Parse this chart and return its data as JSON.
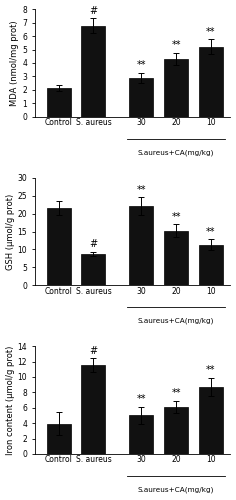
{
  "panels": [
    {
      "ylabel": "MDA (nmol/mg prot)",
      "ylim": [
        0,
        8
      ],
      "yticks": [
        0,
        1,
        2,
        3,
        4,
        5,
        6,
        7,
        8
      ],
      "values": [
        2.15,
        6.75,
        2.9,
        4.3,
        5.2
      ],
      "errors": [
        0.2,
        0.55,
        0.35,
        0.45,
        0.55
      ],
      "sig_labels": [
        "",
        "#",
        "**",
        "**",
        "**"
      ]
    },
    {
      "ylabel": "GSH (μmol/g prot)",
      "ylim": [
        0,
        30
      ],
      "yticks": [
        0,
        5,
        10,
        15,
        20,
        25,
        30
      ],
      "values": [
        21.5,
        8.7,
        22.0,
        15.2,
        11.3
      ],
      "errors": [
        2.0,
        0.6,
        2.5,
        1.8,
        1.5
      ],
      "sig_labels": [
        "",
        "#",
        "**",
        "**",
        "**"
      ]
    },
    {
      "ylabel": "Iron content (μmol/g prot)",
      "ylim": [
        0,
        14
      ],
      "yticks": [
        0,
        2,
        4,
        6,
        8,
        10,
        12,
        14
      ],
      "values": [
        3.9,
        11.5,
        5.0,
        6.1,
        8.7
      ],
      "errors": [
        1.5,
        0.9,
        1.1,
        0.8,
        1.2
      ],
      "sig_labels": [
        "",
        "#",
        "**",
        "**",
        "**"
      ]
    }
  ],
  "bar_color": "#111111",
  "bar_width": 0.55,
  "figsize": [
    2.36,
    5.0
  ],
  "dpi": 100,
  "xlabel_sub": "S.aureus+CA(mg/kg)"
}
